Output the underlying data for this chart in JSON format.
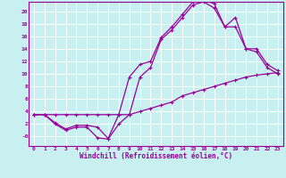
{
  "title": "",
  "xlabel": "Windchill (Refroidissement éolien,°C)",
  "ylabel": "",
  "bg_color": "#c8f0f0",
  "line_color": "#990099",
  "grid_color": "#ffffff",
  "xlim": [
    -0.5,
    23.5
  ],
  "ylim": [
    -1.5,
    21.5
  ],
  "xticks": [
    0,
    1,
    2,
    3,
    4,
    5,
    6,
    7,
    8,
    9,
    10,
    11,
    12,
    13,
    14,
    15,
    16,
    17,
    18,
    19,
    20,
    21,
    22,
    23
  ],
  "yticks": [
    0,
    2,
    4,
    6,
    8,
    10,
    12,
    14,
    16,
    18,
    20
  ],
  "ytick_labels": [
    "-0",
    "2",
    "4",
    "6",
    "8",
    "10",
    "12",
    "14",
    "16",
    "18",
    "20"
  ],
  "line1_x": [
    0,
    1,
    2,
    3,
    4,
    5,
    6,
    7,
    8,
    9,
    10,
    11,
    12,
    13,
    14,
    15,
    16,
    17,
    18,
    19,
    20,
    21,
    22,
    23
  ],
  "line1_y": [
    3.5,
    3.5,
    3.5,
    3.5,
    3.5,
    3.5,
    3.5,
    3.5,
    3.5,
    3.5,
    4.0,
    4.5,
    5.0,
    5.5,
    6.5,
    7.0,
    7.5,
    8.0,
    8.5,
    9.0,
    9.5,
    9.8,
    10.0,
    10.2
  ],
  "line2_x": [
    0,
    1,
    2,
    3,
    4,
    5,
    6,
    7,
    8,
    9,
    10,
    11,
    12,
    13,
    14,
    15,
    16,
    17,
    18,
    19,
    20,
    21,
    22,
    23
  ],
  "line2_y": [
    3.5,
    3.5,
    2.2,
    1.2,
    1.8,
    1.8,
    1.5,
    -0.3,
    3.5,
    9.5,
    11.5,
    12.0,
    15.8,
    17.5,
    19.5,
    21.5,
    21.8,
    21.2,
    17.5,
    17.5,
    14.0,
    14.0,
    11.5,
    10.5
  ],
  "line3_x": [
    0,
    1,
    2,
    3,
    4,
    5,
    6,
    7,
    8,
    9,
    10,
    11,
    12,
    13,
    14,
    15,
    16,
    17,
    18,
    19,
    20,
    21,
    22,
    23
  ],
  "line3_y": [
    3.5,
    3.5,
    2.0,
    1.0,
    1.5,
    1.5,
    -0.2,
    -0.4,
    2.0,
    3.5,
    9.5,
    11.0,
    15.5,
    17.0,
    19.0,
    21.0,
    21.5,
    20.5,
    17.5,
    19.0,
    14.0,
    13.5,
    11.0,
    10.0
  ]
}
